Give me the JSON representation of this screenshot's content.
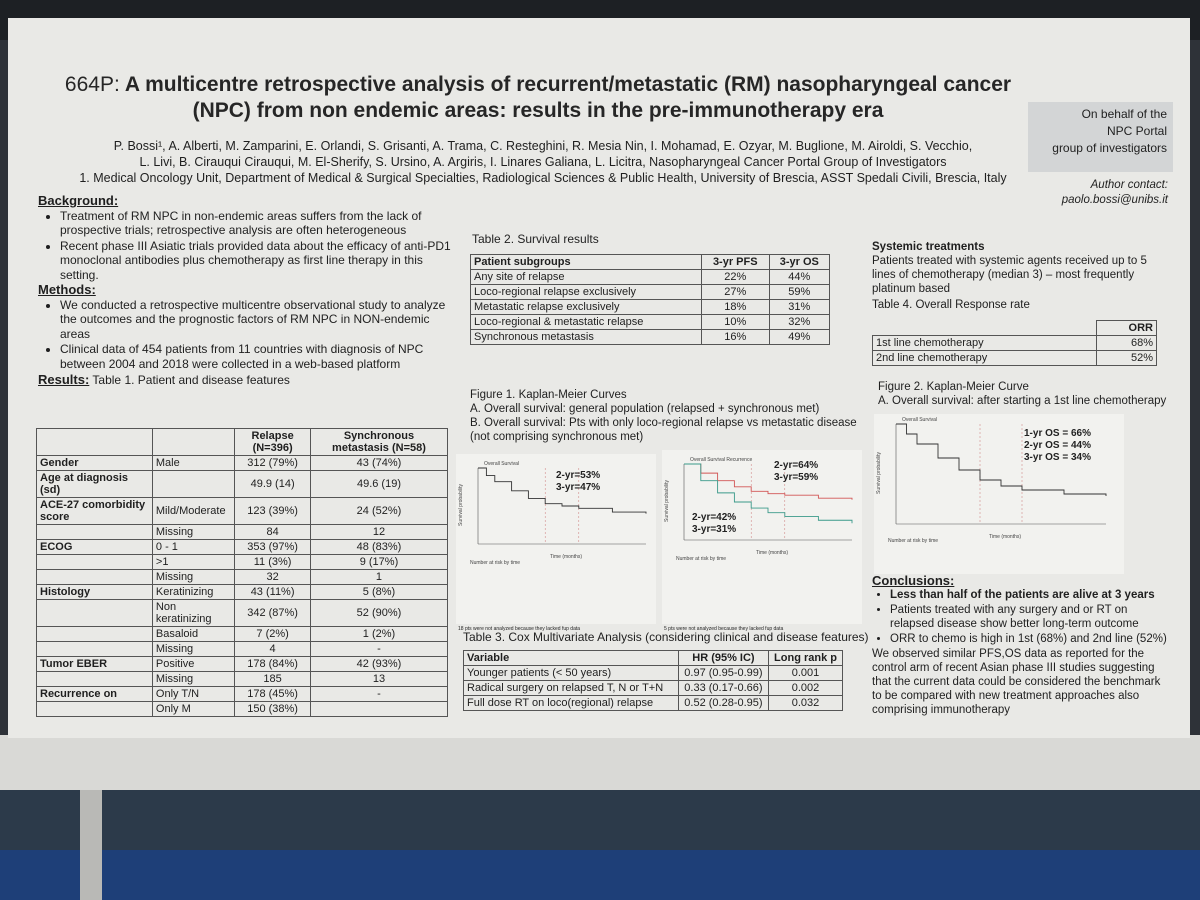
{
  "poster": {
    "title_num": "664P:",
    "title_main": "A multicentre retrospective analysis of recurrent/metastatic (RM) nasopharyngeal cancer (NPC) from non endemic areas: results in the pre-immunotherapy era",
    "authors_line1": "P. Bossi¹, A. Alberti, M. Zamparini, E. Orlandi, S. Grisanti, A. Trama, C. Resteghini, R. Mesia Nin, I. Mohamad, E. Ozyar, M. Buglione, M. Airoldi, S. Vecchio,",
    "authors_line2": "L. Livi, B. Cirauqui Cirauqui, M. El-Sherify, S. Ursino, A. Argiris, I. Linares Galiana, L. Licitra, Nasopharyngeal Cancer Portal Group of Investigators",
    "affiliation": "1. Medical Oncology Unit, Department of Medical & Surgical Specialties, Radiological Sciences & Public Health, University of Brescia, ASST Spedali Civili, Brescia, Italy",
    "behalf": [
      "On behalf of the",
      "NPC Portal",
      "group of investigators"
    ],
    "contact_label": "Author contact:",
    "contact_email": "paolo.bossi@unibs.it"
  },
  "background": {
    "heading": "Background:",
    "b1": "Treatment of RM NPC in non-endemic areas suffers from the lack of prospective trials; retrospective analysis are often heterogeneous",
    "b2": "Recent phase III Asiatic trials provided data about the efficacy of anti-PD1 monoclonal antibodies plus chemotherapy as first line therapy in this setting."
  },
  "methods": {
    "heading": "Methods:",
    "b1": "We conducted a retrospective multicentre observational study to analyze the outcomes and the prognostic factors of RM NPC in NON-endemic areas",
    "b2": "Clinical data of 454 patients from 11 countries with diagnosis of NPC between 2004 and 2018 were collected in a web-based platform"
  },
  "results": {
    "heading": "Results:",
    "table1_title": "Table 1. Patient and disease features",
    "table1_headers": [
      "",
      "",
      "Relapse (N=396)",
      "Synchronous metastasis (N=58)"
    ],
    "table1_rows": [
      [
        "Gender",
        "Male",
        "312 (79%)",
        "43 (74%)"
      ],
      [
        "Age at diagnosis (sd)",
        "",
        "49.9 (14)",
        "49.6 (19)"
      ],
      [
        "ACE-27 comorbidity score",
        "Mild/Moderate",
        "123 (39%)",
        "24 (52%)"
      ],
      [
        "",
        "Missing",
        "84",
        "12"
      ],
      [
        "ECOG",
        "0 - 1",
        "353 (97%)",
        "48 (83%)"
      ],
      [
        "",
        ">1",
        "11 (3%)",
        "9 (17%)"
      ],
      [
        "",
        "Missing",
        "32",
        "1"
      ],
      [
        "Histology",
        "Keratinizing",
        "43 (11%)",
        "5 (8%)"
      ],
      [
        "",
        "Non keratinizing",
        "342 (87%)",
        "52 (90%)"
      ],
      [
        "",
        "Basaloid",
        "7 (2%)",
        "1 (2%)"
      ],
      [
        "",
        "Missing",
        "4",
        "-"
      ],
      [
        "Tumor EBER",
        "Positive",
        "178 (84%)",
        "42 (93%)"
      ],
      [
        "",
        "Missing",
        "185",
        "13"
      ],
      [
        "Recurrence on",
        "Only T/N",
        "178 (45%)",
        "-"
      ],
      [
        "",
        "Only M",
        "150 (38%)",
        ""
      ]
    ]
  },
  "table2": {
    "title": "Table 2. Survival results",
    "headers": [
      "Patient subgroups",
      "3-yr PFS",
      "3-yr OS"
    ],
    "rows": [
      [
        "Any site of relapse",
        "22%",
        "44%"
      ],
      [
        "Loco-regional relapse exclusively",
        "27%",
        "59%"
      ],
      [
        "Metastatic relapse exclusively",
        "18%",
        "31%"
      ],
      [
        "Loco-regional & metastatic relapse",
        "10%",
        "32%"
      ],
      [
        "Synchronous metastasis",
        "16%",
        "49%"
      ]
    ]
  },
  "figure1": {
    "title": "Figure 1. Kaplan-Meier Curves",
    "a": "A.   Overall survival: general population (relapsed + synchronous met)",
    "b": "B.   Overall survival: Pts with only loco-regional relapse vs metastatic disease (not comprising synchronous met)",
    "note_a": "18 pts were not analyzed because they lacked fup data",
    "note_b": "5 pts were not analyzed because they lacked fup data"
  },
  "table3": {
    "title": "Table 3. Cox Multivariate Analysis (considering clinical and disease features)",
    "headers": [
      "Variable",
      "HR (95% IC)",
      "Long rank p"
    ],
    "rows": [
      [
        "Younger patients (< 50 years)",
        "0.97 (0.95-0.99)",
        "0.001"
      ],
      [
        "Radical surgery on relapsed T, N or T+N",
        "0.33 (0.17-0.66)",
        "0.002"
      ],
      [
        "Full dose RT on loco(regional) relapse",
        "0.52 (0.28-0.95)",
        "0.032"
      ]
    ]
  },
  "systemic": {
    "heading": "Systemic treatments",
    "text": "Patients treated with systemic agents received up to 5 lines of chemotherapy (median 3) – most frequently platinum based",
    "table4_title": "Table 4. Overall Response rate",
    "table4_header": "ORR",
    "table4_rows": [
      [
        "1st line chemotherapy",
        "68%"
      ],
      [
        "2nd line chemotherapy",
        "52%"
      ]
    ]
  },
  "figure2": {
    "title": "Figure 2. Kaplan-Meier Curve",
    "a": "A.   Overall survival: after starting a 1st line chemotherapy"
  },
  "conclusions": {
    "heading": "Conclusions:",
    "b1": "Less than half of the patients are alive at 3 years",
    "b2": "Patients treated with any surgery and or RT on relapsed disease show better long-term outcome",
    "b3": "ORR to chemo is high in 1st (68%) and 2nd line (52%)",
    "tail": "We observed similar PFS,OS data as reported for the control arm of recent Asian phase III studies suggesting that the current data could be considered the benchmark to be compared with new treatment approaches also comprising immunotherapy"
  },
  "chart_data": [
    {
      "type": "line",
      "title": "Overall Survival",
      "xlabel": "Time (months)",
      "ylabel": "Survival probability",
      "xlim": [
        0,
        60
      ],
      "ylim": [
        0,
        1
      ],
      "annotations": [
        "2-yr=53%",
        "3-yr=47%"
      ],
      "risk_label": "Number at risk by time",
      "series": [
        {
          "x": [
            0,
            3,
            6,
            12,
            18,
            24,
            30,
            36,
            48,
            60
          ],
          "y": [
            1.0,
            0.9,
            0.82,
            0.7,
            0.6,
            0.53,
            0.5,
            0.47,
            0.42,
            0.4
          ]
        }
      ]
    },
    {
      "type": "line",
      "title": "Overall Survival Recurrence",
      "xlabel": "Time (months)",
      "ylabel": "Survival probability",
      "xlim": [
        0,
        60
      ],
      "ylim": [
        0,
        1
      ],
      "annotations": [
        "2-yr=64%",
        "3-yr=59%",
        "2-yr=42%",
        "3-yr=31%"
      ],
      "risk_label": "Number at risk by time",
      "series": [
        {
          "x": [
            0,
            6,
            12,
            18,
            24,
            30,
            36,
            48,
            60
          ],
          "y": [
            1.0,
            0.88,
            0.78,
            0.7,
            0.64,
            0.61,
            0.59,
            0.55,
            0.53
          ]
        },
        {
          "x": [
            0,
            6,
            12,
            18,
            24,
            30,
            36,
            48,
            60
          ],
          "y": [
            1.0,
            0.78,
            0.62,
            0.5,
            0.42,
            0.36,
            0.31,
            0.26,
            0.22
          ]
        }
      ]
    },
    {
      "type": "line",
      "title": "Overall Survival",
      "xlabel": "Time (months)",
      "ylabel": "Survival probability",
      "xlim": [
        0,
        60
      ],
      "ylim": [
        0,
        1
      ],
      "annotations": [
        "1-yr OS = 66%",
        "2-yr OS = 44%",
        "3-yr OS = 34%"
      ],
      "risk_label": "Number at risk by time",
      "series": [
        {
          "x": [
            0,
            3,
            6,
            12,
            18,
            24,
            30,
            36,
            48,
            60
          ],
          "y": [
            1.0,
            0.9,
            0.8,
            0.66,
            0.54,
            0.44,
            0.38,
            0.34,
            0.3,
            0.28
          ]
        }
      ]
    }
  ],
  "colors": {
    "series_green": "#3b9a8a",
    "series_red": "#d25555",
    "series_dark": "#333333"
  }
}
